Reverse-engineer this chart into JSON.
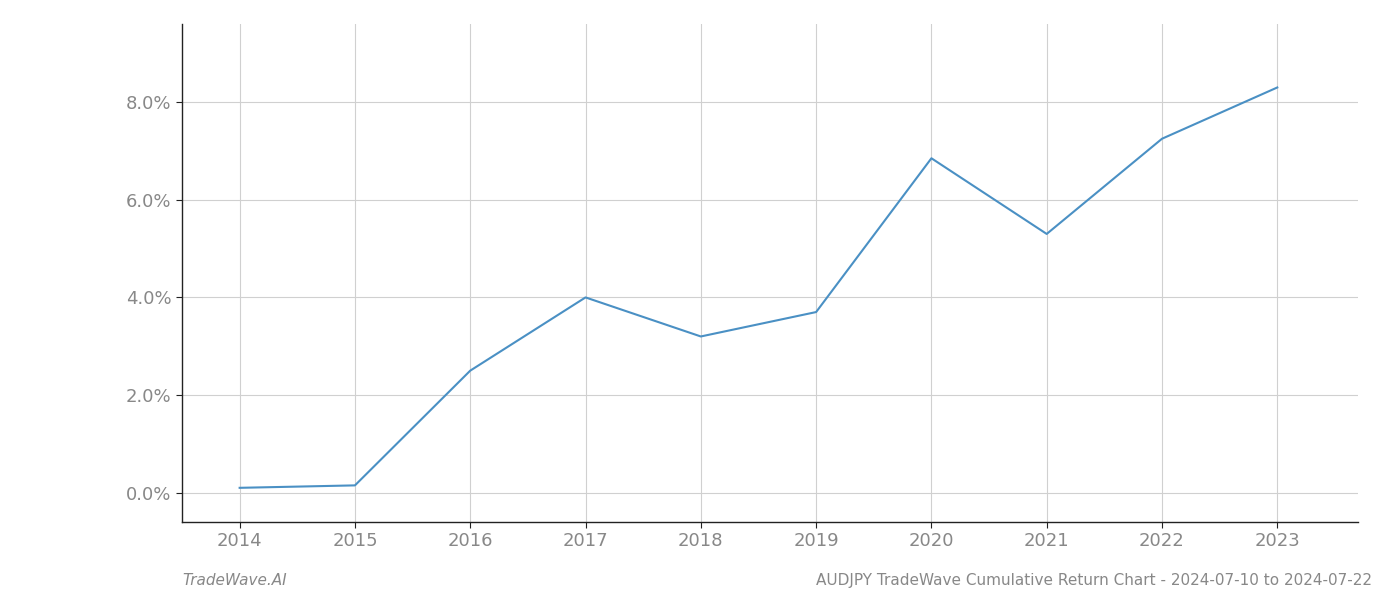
{
  "x_values": [
    2014,
    2015,
    2016,
    2017,
    2018,
    2019,
    2020,
    2021,
    2022,
    2023
  ],
  "y_values": [
    0.001,
    0.0015,
    0.025,
    0.04,
    0.032,
    0.037,
    0.0685,
    0.053,
    0.0725,
    0.083
  ],
  "line_color": "#4a90c4",
  "line_width": 1.5,
  "background_color": "#ffffff",
  "grid_color": "#d0d0d0",
  "title": "AUDJPY TradeWave Cumulative Return Chart - 2024-07-10 to 2024-07-22",
  "footer_left": "TradeWave.AI",
  "xlim": [
    2013.5,
    2023.7
  ],
  "ylim": [
    -0.006,
    0.096
  ],
  "ytick_values": [
    0.0,
    0.02,
    0.04,
    0.06,
    0.08
  ],
  "xtick_values": [
    2014,
    2015,
    2016,
    2017,
    2018,
    2019,
    2020,
    2021,
    2022,
    2023
  ],
  "tick_label_color": "#888888",
  "tick_fontsize": 13,
  "footer_fontsize": 11,
  "title_fontsize": 11,
  "spine_color": "#222222"
}
